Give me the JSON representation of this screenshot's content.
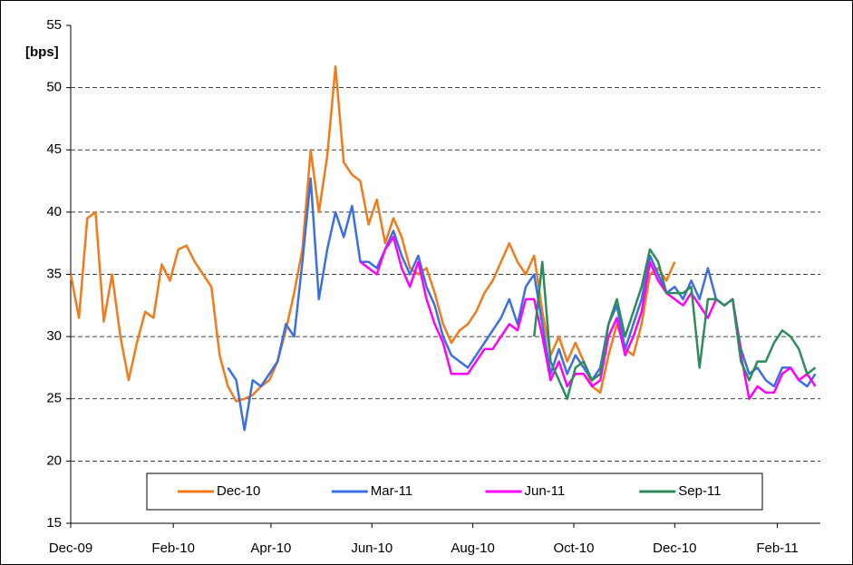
{
  "chart_data": {
    "type": "line",
    "y_label": "[bps]",
    "x": [
      0,
      5,
      10,
      15,
      20,
      25,
      30,
      35,
      40,
      45,
      50,
      55,
      60,
      65,
      70,
      75,
      80,
      85,
      90,
      95,
      100,
      105,
      110,
      115,
      120,
      125,
      130,
      135,
      140,
      145,
      150,
      155,
      160,
      165,
      170,
      175,
      180,
      185,
      190,
      195,
      200,
      205,
      210,
      215,
      220,
      225,
      230,
      235,
      240,
      245,
      250,
      255,
      260,
      265,
      270,
      275,
      280,
      285,
      290,
      295,
      300,
      305,
      310,
      315,
      320,
      325,
      330,
      335,
      340,
      345,
      350,
      355,
      360,
      365,
      370,
      375,
      380,
      385,
      390,
      395,
      400,
      405,
      410,
      415,
      420,
      425,
      430,
      435,
      440,
      445,
      450
    ],
    "series": [
      {
        "name": "Dec-10",
        "color": "#f27a1a",
        "values": [
          35,
          31.5,
          39.5,
          40,
          31.2,
          35,
          30,
          26.5,
          29.5,
          32,
          31.5,
          35.8,
          34.5,
          37,
          37.3,
          36,
          35,
          34,
          28.5,
          26,
          24.8,
          25,
          25.3,
          26,
          26.5,
          28,
          30.5,
          33.5,
          37,
          45,
          40,
          44.5,
          51.7,
          44,
          43,
          42.5,
          39,
          41,
          37.5,
          39.5,
          38,
          35.5,
          35,
          35.5,
          33.5,
          31,
          29.5,
          30.5,
          31,
          32,
          33.5,
          34.5,
          36,
          37.5,
          36,
          35,
          36.5,
          32,
          28.5,
          30,
          28,
          29.5,
          28,
          26,
          25.5,
          28.5,
          31,
          29,
          28.5,
          31,
          35,
          35.5,
          34.5,
          36,
          null,
          null,
          null,
          null,
          null,
          null,
          null,
          null,
          null,
          null,
          null,
          null,
          null,
          null,
          null,
          null,
          null
        ]
      },
      {
        "name": "Mar-11",
        "color": "#3b6fe2",
        "values": [
          null,
          null,
          null,
          null,
          null,
          null,
          null,
          null,
          null,
          null,
          null,
          null,
          null,
          null,
          null,
          null,
          null,
          null,
          null,
          27.5,
          26.5,
          22.5,
          26.5,
          26,
          27,
          28,
          31,
          30,
          36,
          42.7,
          33,
          37,
          40,
          38,
          40.5,
          36,
          36,
          35.5,
          37,
          38.5,
          36.5,
          35,
          36.5,
          34,
          32.5,
          30,
          28.5,
          28,
          27.5,
          28.5,
          29.5,
          30.5,
          31.5,
          33,
          31,
          34,
          35,
          31,
          27,
          29,
          27,
          28.5,
          27.5,
          26.5,
          27.5,
          31,
          32.5,
          29,
          31,
          33,
          36.5,
          35,
          33.5,
          34,
          33,
          34.5,
          33,
          35.5,
          33,
          32.5,
          33,
          29,
          27,
          27.5,
          26.5,
          26,
          27.5,
          27.5,
          26.5,
          26,
          27
        ]
      },
      {
        "name": "Jun-11",
        "color": "#ff00ff",
        "values": [
          null,
          null,
          null,
          null,
          null,
          null,
          null,
          null,
          null,
          null,
          null,
          null,
          null,
          null,
          null,
          null,
          null,
          null,
          null,
          null,
          null,
          null,
          null,
          null,
          null,
          null,
          null,
          null,
          null,
          null,
          null,
          null,
          null,
          null,
          null,
          36,
          35.5,
          35,
          37,
          38,
          35.5,
          34,
          36,
          33,
          31,
          29.5,
          27,
          27,
          27,
          28,
          29,
          29,
          30,
          31,
          30.5,
          33,
          33,
          30,
          26.5,
          28,
          26,
          27,
          27,
          26,
          26.5,
          30,
          31.5,
          28.5,
          30,
          32,
          36,
          34.5,
          33.5,
          33,
          32.5,
          33.5,
          32.5,
          31.5,
          33,
          32.5,
          33,
          28.5,
          25,
          26,
          25.5,
          25.5,
          27,
          27.5,
          26.5,
          27,
          26
        ]
      },
      {
        "name": "Sep-11",
        "color": "#2e8b5a",
        "values": [
          null,
          null,
          null,
          null,
          null,
          null,
          null,
          null,
          null,
          null,
          null,
          null,
          null,
          null,
          null,
          null,
          null,
          null,
          null,
          null,
          null,
          null,
          null,
          null,
          null,
          null,
          null,
          null,
          null,
          null,
          null,
          null,
          null,
          null,
          null,
          null,
          null,
          null,
          null,
          null,
          null,
          null,
          null,
          null,
          null,
          null,
          null,
          null,
          null,
          null,
          null,
          null,
          null,
          null,
          null,
          null,
          30,
          36,
          28,
          26.5,
          25,
          27.5,
          28,
          26.5,
          27,
          31,
          33,
          30,
          32,
          34,
          37,
          36,
          33.5,
          33.5,
          33.5,
          34,
          27.5,
          33,
          33,
          32.5,
          33,
          28,
          26.5,
          28,
          28,
          29.5,
          30.5,
          30,
          29,
          27,
          27.5
        ]
      }
    ],
    "xlim": [
      0,
      453
    ],
    "xticks": [
      {
        "value": 0,
        "label": "Dec-09"
      },
      {
        "value": 62,
        "label": "Feb-10"
      },
      {
        "value": 121,
        "label": "Apr-10"
      },
      {
        "value": 182,
        "label": "Jun-10"
      },
      {
        "value": 243,
        "label": "Aug-10"
      },
      {
        "value": 304,
        "label": "Oct-10"
      },
      {
        "value": 365,
        "label": "Dec-10"
      },
      {
        "value": 427,
        "label": "Feb-11"
      }
    ],
    "ylim": [
      15,
      55
    ],
    "yticks": [
      15,
      20,
      25,
      30,
      35,
      40,
      45,
      50,
      55
    ],
    "grid": true,
    "legend": "bottom"
  }
}
